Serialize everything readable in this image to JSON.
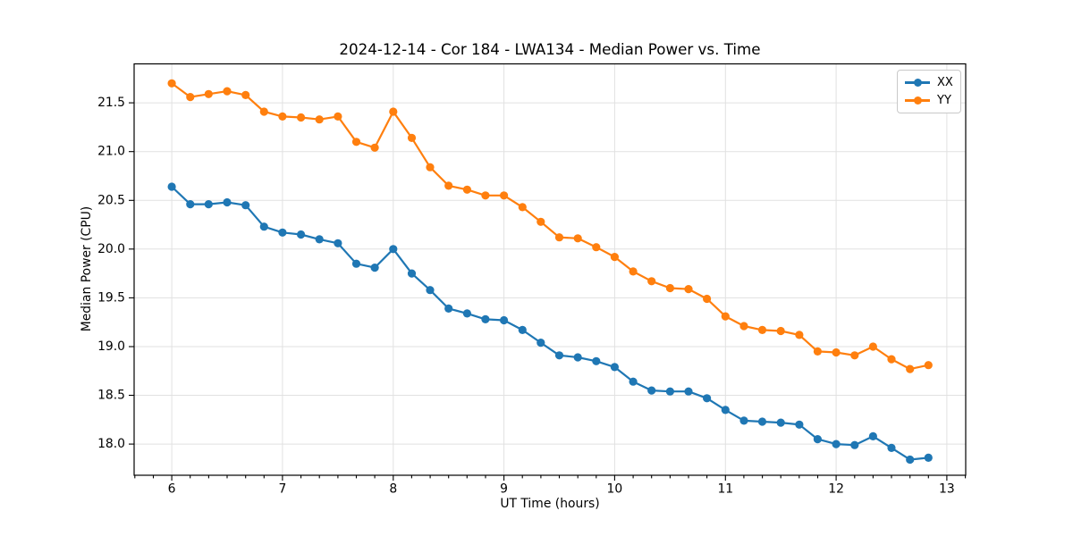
{
  "figure": {
    "title": "2024-12-14 - Cor 184 - LWA134 - Median Power vs. Time",
    "xlabel": "UT Time (hours)",
    "ylabel": "Median Power (CPU)"
  },
  "legend": {
    "position": "upper right",
    "items": [
      {
        "label": "XX",
        "color": "#1f77b4"
      },
      {
        "label": "YY",
        "color": "#ff7f0e"
      }
    ]
  },
  "chart_data": {
    "type": "line",
    "title": "2024-12-14 - Cor 184 - LWA134 - Median Power vs. Time",
    "xlabel": "UT Time (hours)",
    "ylabel": "Median Power (CPU)",
    "grid": true,
    "marker": "o",
    "legend_position": "upper right",
    "xlim": [
      5.66,
      13.17
    ],
    "ylim": [
      17.68,
      21.9
    ],
    "xticks": [
      6,
      7,
      8,
      9,
      10,
      11,
      12,
      13
    ],
    "xticklabels": [
      "6",
      "7",
      "8",
      "9",
      "10",
      "11",
      "12",
      "13"
    ],
    "yticks": [
      18.0,
      18.5,
      19.0,
      19.5,
      20.0,
      20.5,
      21.0,
      21.5
    ],
    "yticklabels": [
      "18.0",
      "18.5",
      "19.0",
      "19.5",
      "20.0",
      "20.5",
      "21.0",
      "21.5"
    ],
    "minor_xtick_step": 0.1667,
    "x": [
      6.0,
      6.167,
      6.333,
      6.5,
      6.667,
      6.833,
      7.0,
      7.167,
      7.333,
      7.5,
      7.667,
      7.833,
      8.0,
      8.167,
      8.333,
      8.5,
      8.667,
      8.833,
      9.0,
      9.167,
      9.333,
      9.5,
      9.667,
      9.833,
      10.0,
      10.167,
      10.333,
      10.5,
      10.667,
      10.833,
      11.0,
      11.167,
      11.333,
      11.5,
      11.667,
      11.833,
      12.0,
      12.167,
      12.333,
      12.5,
      12.667,
      12.833
    ],
    "series": [
      {
        "name": "XX",
        "color": "#1f77b4",
        "values": [
          20.64,
          20.46,
          20.46,
          20.48,
          20.45,
          20.23,
          20.17,
          20.15,
          20.1,
          20.06,
          19.85,
          19.81,
          20.0,
          19.75,
          19.58,
          19.39,
          19.34,
          19.28,
          19.27,
          19.17,
          19.04,
          18.91,
          18.89,
          18.85,
          18.79,
          18.64,
          18.55,
          18.54,
          18.54,
          18.47,
          18.35,
          18.24,
          18.23,
          18.22,
          18.2,
          18.05,
          18.0,
          17.99,
          18.08,
          17.96,
          17.84,
          17.86
        ]
      },
      {
        "name": "YY",
        "color": "#ff7f0e",
        "values": [
          21.7,
          21.56,
          21.59,
          21.62,
          21.58,
          21.41,
          21.36,
          21.35,
          21.33,
          21.36,
          21.1,
          21.04,
          21.41,
          21.14,
          20.84,
          20.65,
          20.61,
          20.55,
          20.55,
          20.43,
          20.28,
          20.12,
          20.11,
          20.02,
          19.92,
          19.77,
          19.67,
          19.6,
          19.59,
          19.49,
          19.31,
          19.21,
          19.17,
          19.16,
          19.12,
          18.95,
          18.94,
          18.91,
          19.0,
          18.87,
          18.77,
          18.81
        ]
      }
    ]
  }
}
